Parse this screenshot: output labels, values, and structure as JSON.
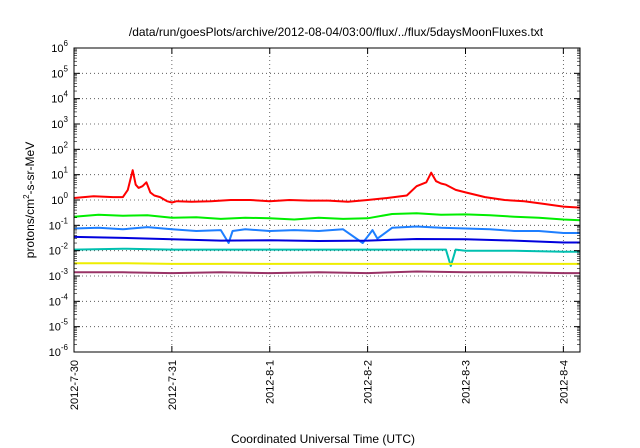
{
  "chart_data": {
    "type": "line",
    "title": "/data/run/goesPlots/archive/2012-08-04/03:00/flux/../flux/5daysMoonFluxes.txt",
    "xlabel": "Coordinated Universal Time (UTC)",
    "ylabel": "protons/cm2-s-sr-MeV",
    "ylabel_parts": {
      "pre": "protons/cm",
      "sup": "2",
      "post": "-s-sr-MeV"
    },
    "yscale": "log",
    "ylim_exponents": [
      -6,
      6
    ],
    "y_tick_base": "10",
    "y_tick_exponents": [
      "-6",
      "-5",
      "-4",
      "-3",
      "-2",
      "-1",
      "0",
      "1",
      "2",
      "3",
      "4",
      "5",
      "6"
    ],
    "x_range_days": [
      0,
      5.17
    ],
    "x_ticks": [
      "2012-7-30",
      "2012-7-31",
      "2012-8-1",
      "2012-8-2",
      "2012-8-3",
      "2012-8-4"
    ],
    "grid": true,
    "series": [
      {
        "color": "#ff0000",
        "x": [
          0,
          0.2,
          0.4,
          0.5,
          0.55,
          0.6,
          0.63,
          0.66,
          0.7,
          0.74,
          0.78,
          0.82,
          0.88,
          0.95,
          1.0,
          1.05,
          1.2,
          1.4,
          1.6,
          1.8,
          2.0,
          2.2,
          2.4,
          2.6,
          2.8,
          3.0,
          3.2,
          3.4,
          3.5,
          3.6,
          3.65,
          3.7,
          3.75,
          3.8,
          3.9,
          4.0,
          4.2,
          4.4,
          4.6,
          4.8,
          5.0,
          5.17
        ],
        "y": [
          1.2,
          1.4,
          1.3,
          1.3,
          2.5,
          15,
          4.0,
          3.0,
          3.5,
          5.0,
          2.0,
          1.5,
          1.3,
          0.9,
          0.8,
          0.9,
          0.85,
          0.9,
          1.0,
          1.0,
          0.9,
          1.0,
          0.95,
          0.95,
          0.85,
          1.0,
          1.2,
          1.5,
          3.5,
          5.0,
          12,
          5.5,
          4.5,
          4.0,
          2.5,
          2.0,
          1.3,
          1.0,
          0.9,
          0.7,
          0.55,
          0.5
        ]
      },
      {
        "color": "#00ee00",
        "x": [
          0,
          0.25,
          0.5,
          0.75,
          1.0,
          1.25,
          1.5,
          1.75,
          2.0,
          2.25,
          2.5,
          2.75,
          3.0,
          3.25,
          3.5,
          3.75,
          4.0,
          4.25,
          4.5,
          4.75,
          5.0,
          5.17
        ],
        "y": [
          0.22,
          0.26,
          0.24,
          0.25,
          0.2,
          0.21,
          0.18,
          0.2,
          0.19,
          0.17,
          0.2,
          0.18,
          0.19,
          0.28,
          0.3,
          0.26,
          0.27,
          0.25,
          0.22,
          0.2,
          0.17,
          0.16
        ]
      },
      {
        "color": "#1e7fff",
        "x": [
          0,
          0.25,
          0.5,
          0.75,
          1.0,
          1.25,
          1.5,
          1.58,
          1.62,
          1.75,
          2.0,
          2.25,
          2.5,
          2.75,
          2.95,
          3.05,
          3.1,
          3.25,
          3.5,
          3.75,
          4.0,
          4.25,
          4.5,
          4.75,
          5.0,
          5.17
        ],
        "y": [
          0.075,
          0.08,
          0.07,
          0.085,
          0.07,
          0.06,
          0.065,
          0.02,
          0.06,
          0.07,
          0.06,
          0.065,
          0.06,
          0.07,
          0.02,
          0.065,
          0.03,
          0.08,
          0.09,
          0.08,
          0.075,
          0.07,
          0.06,
          0.06,
          0.05,
          0.05
        ]
      },
      {
        "color": "#0000dd",
        "x": [
          0,
          0.5,
          1.0,
          1.5,
          2.0,
          2.5,
          3.0,
          3.5,
          4.0,
          4.5,
          5.0,
          5.17
        ],
        "y": [
          0.035,
          0.032,
          0.028,
          0.025,
          0.026,
          0.024,
          0.025,
          0.029,
          0.028,
          0.025,
          0.021,
          0.021
        ]
      },
      {
        "color": "#00c0b0",
        "x": [
          0,
          0.5,
          1.0,
          1.5,
          2.0,
          2.5,
          3.0,
          3.5,
          3.8,
          3.85,
          3.9,
          4.0,
          4.5,
          5.0,
          5.17
        ],
        "y": [
          0.011,
          0.012,
          0.011,
          0.011,
          0.011,
          0.011,
          0.011,
          0.011,
          0.011,
          0.0025,
          0.011,
          0.01,
          0.01,
          0.009,
          0.009
        ]
      },
      {
        "color": "#eeee00",
        "x": [
          0,
          0.5,
          1.0,
          1.5,
          2.0,
          2.5,
          3.0,
          3.5,
          4.0,
          4.5,
          5.0,
          5.17
        ],
        "y": [
          0.0032,
          0.0032,
          0.003,
          0.003,
          0.003,
          0.003,
          0.003,
          0.003,
          0.003,
          0.003,
          0.003,
          0.003
        ]
      },
      {
        "color": "#993366",
        "x": [
          0,
          0.5,
          1.0,
          1.5,
          2.0,
          2.5,
          3.0,
          3.5,
          4.0,
          4.5,
          5.0,
          5.17
        ],
        "y": [
          0.0014,
          0.0014,
          0.0013,
          0.0014,
          0.0013,
          0.0014,
          0.0013,
          0.0015,
          0.0014,
          0.0014,
          0.0013,
          0.0013
        ]
      }
    ]
  }
}
